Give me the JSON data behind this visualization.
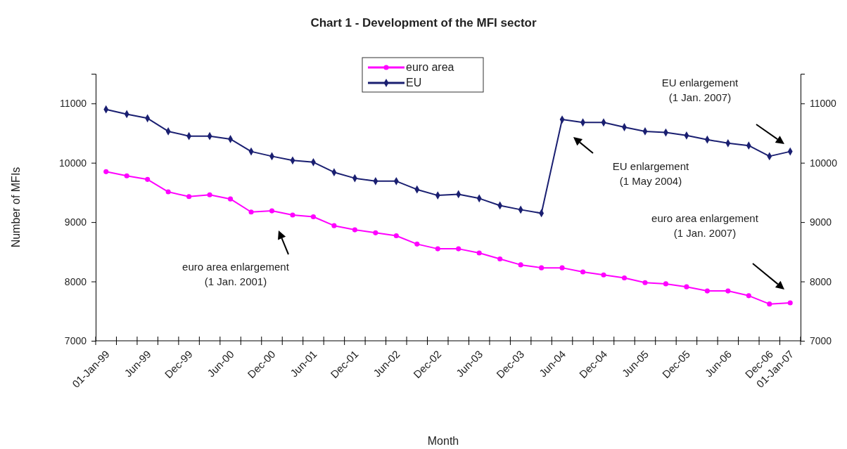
{
  "chart_data": {
    "type": "line",
    "title": "Chart 1 - Development of the MFI sector",
    "xlabel": "Month",
    "ylabel": "Number of MFIs",
    "categories": [
      "01-Jan-99",
      null,
      "Jun-99",
      null,
      "Dec-99",
      null,
      "Jun-00",
      null,
      "Dec-00",
      null,
      "Jun-01",
      null,
      "Dec-01",
      null,
      "Jun-02",
      null,
      "Dec-02",
      null,
      "Jun-03",
      null,
      "Dec-03",
      null,
      "Jun-04",
      null,
      "Dec-04",
      null,
      "Jun-05",
      null,
      "Dec-05",
      null,
      "Jun-06",
      null,
      "Dec-06",
      "01-Jan-07"
    ],
    "series": [
      {
        "name": "euro area",
        "color": "#ff00ff",
        "marker": "circle",
        "values": [
          9850,
          9780,
          9720,
          9510,
          9430,
          9460,
          9390,
          9170,
          9190,
          9120,
          9090,
          8940,
          8870,
          8820,
          8770,
          8630,
          8550,
          8550,
          8480,
          8380,
          8280,
          8230,
          8230,
          8160,
          8110,
          8060,
          7980,
          7960,
          7910,
          7840,
          7840,
          7760,
          7620,
          7640
        ]
      },
      {
        "name": "EU",
        "color": "#1a1f71",
        "marker": "diamond",
        "values": [
          10900,
          10820,
          10750,
          10530,
          10450,
          10450,
          10400,
          10190,
          10110,
          10040,
          10010,
          9840,
          9740,
          9690,
          9690,
          9550,
          9450,
          9470,
          9400,
          9280,
          9210,
          9150,
          10730,
          10680,
          10680,
          10600,
          10530,
          10510,
          10460,
          10390,
          10330,
          10290,
          10110,
          10190
        ]
      }
    ],
    "ylim": [
      7000,
      11500
    ],
    "yticks": [
      7000,
      8000,
      9000,
      10000,
      11000
    ],
    "y2lim": [
      7000,
      11500
    ],
    "y2ticks": [
      7000,
      8000,
      9000,
      10000,
      11000
    ],
    "grid": false,
    "legend": "top",
    "line_style": "solid",
    "annotations": [
      "euro area enlargement\n(1 Jan. 2001)",
      "EU enlargement\n(1 May 2004)",
      "EU enlargement\n(1 Jan. 2007)",
      "euro area enlargement\n(1 Jan. 2007)"
    ]
  }
}
